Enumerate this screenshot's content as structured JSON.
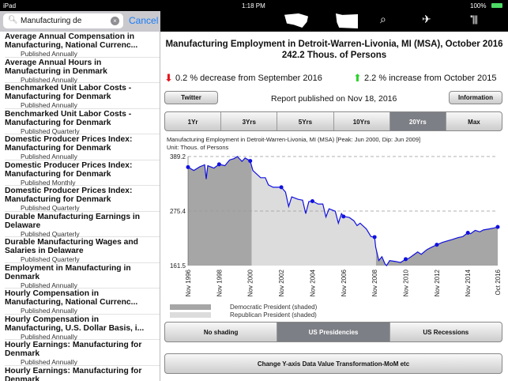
{
  "status": {
    "device": "iPad",
    "time": "1:18 PM",
    "battery": "100%"
  },
  "search": {
    "value": "Manufacturing de",
    "cancel": "Cancel"
  },
  "nav_icons": [
    "usa-map-icon",
    "state-map-icon",
    "search-icon",
    "airplane-icon",
    "bars-icon"
  ],
  "sidebar": {
    "items": [
      {
        "title": "Average Annual Compensation in",
        "title2": "Manufacturing, National Currenc...",
        "sub": "Published Annually"
      },
      {
        "title": "Average Annual Hours in",
        "title2": "Manufacturing in Denmark",
        "sub": "Published Annually"
      },
      {
        "title": "Benchmarked Unit Labor Costs -",
        "title2": "Manufacturing for Denmark",
        "sub": "Published Annually"
      },
      {
        "title": "Benchmarked Unit Labor Costs -",
        "title2": "Manufacturing for Denmark",
        "sub": "Published Quarterly"
      },
      {
        "title": "Domestic Producer Prices Index:",
        "title2": "Manufacturing for Denmark",
        "sub": "Published Annually"
      },
      {
        "title": "Domestic Producer Prices Index:",
        "title2": "Manufacturing for Denmark",
        "sub": "Published Monthly"
      },
      {
        "title": "Domestic Producer Prices Index:",
        "title2": "Manufacturing for Denmark",
        "sub": "Published Quarterly"
      },
      {
        "title": "Durable Manufacturing Earnings in",
        "title2": "Delaware",
        "sub": "Published Quarterly"
      },
      {
        "title": "Durable Manufacturing Wages and",
        "title2": "Salaries in Delaware",
        "sub": "Published Quarterly"
      },
      {
        "title": "Employment in Manufacturing in",
        "title2": "Denmark",
        "sub": "Published Annually"
      },
      {
        "title": "Hourly Compensation in",
        "title2": "Manufacturing, National Currenc...",
        "sub": "Published Annually"
      },
      {
        "title": "Hourly Compensation in",
        "title2": "Manufacturing, U.S. Dollar Basis, i...",
        "sub": "Published Annually"
      },
      {
        "title": "Hourly Earnings: Manufacturing for",
        "title2": "Denmark",
        "sub": "Published Annually"
      },
      {
        "title": "Hourly Earnings: Manufacturing for",
        "title2": "Denmark",
        "sub": ""
      }
    ]
  },
  "main": {
    "title": "Manufacturing Employment in Detroit-Warren-Livonia, MI (MSA), October 2016",
    "value": "242.2 Thous. of Persons",
    "decrease": "0.2 % decrease from September 2016",
    "increase": "2.2 % increase from October 2015",
    "colors": {
      "down": "#e8141c",
      "up": "#2ed12e",
      "line": "#1010e0",
      "dem": "#a6a6a6",
      "rep": "#dcdcdc"
    },
    "twitter": "Twitter",
    "information": "Information",
    "published": "Report published on Nov 18, 2016",
    "ranges": [
      "1Yr",
      "3Yrs",
      "5Yrs",
      "10Yrs",
      "20Yrs",
      "Max"
    ],
    "selected_range": "20Yrs",
    "shading": [
      "No shading",
      "US Presidencies",
      "US Recessions"
    ],
    "selected_shading": "US Presidencies",
    "transform_button": "Change Y-axis Data Value Transformation-MoM etc"
  },
  "chart_data": {
    "type": "line",
    "title": "Manufacturing Employment in Detroit-Warren-Livonia, MI (MSA) [Peak: Jun 2000, Dip: Jun 2009]",
    "unit": "Unit: Thous. of Persons",
    "ylim": [
      161.5,
      389.2
    ],
    "yticks": [
      "389.2",
      "275.4",
      "161.5"
    ],
    "xlim": [
      1996.83,
      2016.75
    ],
    "xticks": [
      {
        "x": 1996.83,
        "label": "Nov 1996"
      },
      {
        "x": 1998.83,
        "label": "Nov 1998"
      },
      {
        "x": 2000.83,
        "label": "Nov 2000"
      },
      {
        "x": 2002.83,
        "label": "Nov 2002"
      },
      {
        "x": 2004.83,
        "label": "Nov 2004"
      },
      {
        "x": 2006.83,
        "label": "Nov 2006"
      },
      {
        "x": 2008.83,
        "label": "Nov 2008"
      },
      {
        "x": 2010.83,
        "label": "Nov 2010"
      },
      {
        "x": 2012.83,
        "label": "Nov 2012"
      },
      {
        "x": 2014.83,
        "label": "Nov 2014"
      },
      {
        "x": 2016.75,
        "label": "Oct 2016"
      }
    ],
    "shading": [
      {
        "from": 1996.83,
        "to": 2000.92,
        "party": "dem"
      },
      {
        "from": 2000.92,
        "to": 2008.92,
        "party": "rep"
      },
      {
        "from": 2008.92,
        "to": 2016.75,
        "party": "dem"
      }
    ],
    "legend": [
      "Democratic President (shaded)",
      "Republican President (shaded)"
    ],
    "series": [
      [
        1996.83,
        367
      ],
      [
        1997.2,
        360
      ],
      [
        1997.6,
        368
      ],
      [
        1997.9,
        372
      ],
      [
        1998.0,
        342
      ],
      [
        1998.1,
        370
      ],
      [
        1998.5,
        365
      ],
      [
        1998.83,
        373
      ],
      [
        1999.2,
        370
      ],
      [
        1999.5,
        382
      ],
      [
        1999.8,
        385
      ],
      [
        2000.0,
        389.2
      ],
      [
        2000.3,
        379
      ],
      [
        2000.5,
        386
      ],
      [
        2000.83,
        380
      ],
      [
        2001.0,
        360
      ],
      [
        2001.5,
        345
      ],
      [
        2001.8,
        345
      ],
      [
        2002.0,
        330
      ],
      [
        2002.3,
        325
      ],
      [
        2002.83,
        325
      ],
      [
        2003.1,
        315
      ],
      [
        2003.3,
        285
      ],
      [
        2003.5,
        305
      ],
      [
        2003.9,
        300
      ],
      [
        2004.2,
        298
      ],
      [
        2004.4,
        270
      ],
      [
        2004.6,
        295
      ],
      [
        2004.83,
        296
      ],
      [
        2005.2,
        290
      ],
      [
        2005.5,
        290
      ],
      [
        2005.7,
        263
      ],
      [
        2005.9,
        280
      ],
      [
        2006.3,
        275
      ],
      [
        2006.5,
        250
      ],
      [
        2006.7,
        270
      ],
      [
        2006.83,
        264
      ],
      [
        2007.2,
        262
      ],
      [
        2007.5,
        255
      ],
      [
        2007.7,
        245
      ],
      [
        2007.9,
        250
      ],
      [
        2008.3,
        238
      ],
      [
        2008.6,
        222
      ],
      [
        2008.83,
        221
      ],
      [
        2008.9,
        200
      ],
      [
        2009.1,
        172
      ],
      [
        2009.3,
        180
      ],
      [
        2009.5,
        165
      ],
      [
        2009.6,
        161.5
      ],
      [
        2009.8,
        172
      ],
      [
        2010.2,
        170
      ],
      [
        2010.5,
        168
      ],
      [
        2010.83,
        175
      ],
      [
        2011.0,
        176
      ],
      [
        2011.3,
        183
      ],
      [
        2011.6,
        190
      ],
      [
        2011.83,
        185
      ],
      [
        2012.2,
        195
      ],
      [
        2012.5,
        200
      ],
      [
        2012.83,
        205
      ],
      [
        2013.2,
        210
      ],
      [
        2013.5,
        213
      ],
      [
        2013.83,
        216
      ],
      [
        2014.2,
        220
      ],
      [
        2014.5,
        222
      ],
      [
        2014.83,
        230
      ],
      [
        2015.0,
        228
      ],
      [
        2015.3,
        235
      ],
      [
        2015.6,
        232
      ],
      [
        2015.83,
        236
      ],
      [
        2016.2,
        238
      ],
      [
        2016.5,
        240
      ],
      [
        2016.75,
        242.2
      ]
    ],
    "markers": [
      [
        1996.83,
        367
      ],
      [
        1998.83,
        373
      ],
      [
        2000.83,
        380
      ],
      [
        2002.83,
        325
      ],
      [
        2004.83,
        296
      ],
      [
        2006.83,
        264
      ],
      [
        2008.83,
        221
      ],
      [
        2010.83,
        175
      ],
      [
        2012.83,
        205
      ],
      [
        2014.83,
        230
      ],
      [
        2016.75,
        242.2
      ]
    ]
  }
}
